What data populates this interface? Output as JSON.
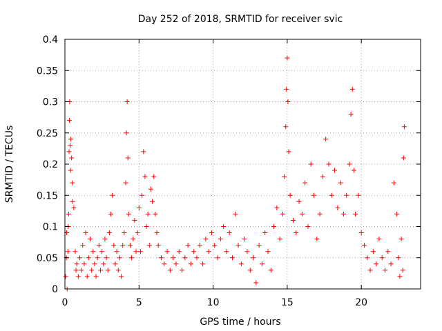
{
  "chart_data": {
    "type": "scatter",
    "title": "Day 252 of 2018, SRMTID for receiver svic",
    "xlabel": "GPS time / hours",
    "ylabel": "SRMTID / TECUs",
    "xlim": [
      0,
      24
    ],
    "ylim": [
      0,
      0.4
    ],
    "xticks": [
      "0",
      "5",
      "10",
      "15",
      "20"
    ],
    "xtick_values": [
      0,
      5,
      10,
      15,
      20
    ],
    "yticks": [
      "0",
      "0.05",
      "0.1",
      "0.15",
      "0.2",
      "0.25",
      "0.3",
      "0.35",
      "0.4"
    ],
    "ytick_values": [
      0,
      0.05,
      0.1,
      0.15,
      0.2,
      0.25,
      0.3,
      0.35,
      0.4
    ],
    "grid": true,
    "marker": "+",
    "colors": {
      "series": "#ff0000",
      "grid": "#a0a0a0",
      "axis": "#000000"
    },
    "series": [
      {
        "points": [
          [
            0.05,
            0.02
          ],
          [
            0.1,
            0.05
          ],
          [
            0.12,
            0.09
          ],
          [
            0.15,
            0.0
          ],
          [
            0.2,
            0.06
          ],
          [
            0.22,
            0.1
          ],
          [
            0.25,
            0.12
          ],
          [
            0.28,
            0.22
          ],
          [
            0.3,
            0.27
          ],
          [
            0.32,
            0.3
          ],
          [
            0.35,
            0.23
          ],
          [
            0.38,
            0.19
          ],
          [
            0.4,
            0.24
          ],
          [
            0.45,
            0.21
          ],
          [
            0.5,
            0.17
          ],
          [
            0.52,
            0.14
          ],
          [
            0.6,
            0.13
          ],
          [
            0.7,
            0.06
          ],
          [
            0.75,
            0.03
          ],
          [
            0.8,
            0.04
          ],
          [
            0.9,
            0.02
          ],
          [
            1.0,
            0.05
          ],
          [
            1.1,
            0.03
          ],
          [
            1.2,
            0.07
          ],
          [
            1.3,
            0.04
          ],
          [
            1.4,
            0.09
          ],
          [
            1.5,
            0.02
          ],
          [
            1.6,
            0.05
          ],
          [
            1.7,
            0.08
          ],
          [
            1.8,
            0.03
          ],
          [
            1.9,
            0.06
          ],
          [
            2.0,
            0.04
          ],
          [
            2.1,
            0.02
          ],
          [
            2.2,
            0.05
          ],
          [
            2.3,
            0.07
          ],
          [
            2.4,
            0.03
          ],
          [
            2.5,
            0.06
          ],
          [
            2.6,
            0.04
          ],
          [
            2.7,
            0.08
          ],
          [
            2.8,
            0.05
          ],
          [
            2.9,
            0.03
          ],
          [
            3.0,
            0.09
          ],
          [
            3.1,
            0.12
          ],
          [
            3.2,
            0.15
          ],
          [
            3.3,
            0.07
          ],
          [
            3.4,
            0.04
          ],
          [
            3.5,
            0.06
          ],
          [
            3.6,
            0.03
          ],
          [
            3.7,
            0.05
          ],
          [
            3.8,
            0.02
          ],
          [
            3.9,
            0.07
          ],
          [
            4.0,
            0.09
          ],
          [
            4.1,
            0.17
          ],
          [
            4.15,
            0.25
          ],
          [
            4.2,
            0.3
          ],
          [
            4.25,
            0.21
          ],
          [
            4.3,
            0.12
          ],
          [
            4.4,
            0.07
          ],
          [
            4.5,
            0.05
          ],
          [
            4.6,
            0.08
          ],
          [
            4.7,
            0.11
          ],
          [
            4.8,
            0.06
          ],
          [
            4.9,
            0.09
          ],
          [
            5.0,
            0.13
          ],
          [
            5.1,
            0.06
          ],
          [
            5.2,
            0.15
          ],
          [
            5.3,
            0.22
          ],
          [
            5.4,
            0.18
          ],
          [
            5.5,
            0.1
          ],
          [
            5.6,
            0.12
          ],
          [
            5.7,
            0.07
          ],
          [
            5.8,
            0.16
          ],
          [
            5.9,
            0.14
          ],
          [
            6.0,
            0.18
          ],
          [
            6.1,
            0.12
          ],
          [
            6.2,
            0.09
          ],
          [
            6.3,
            0.07
          ],
          [
            6.5,
            0.05
          ],
          [
            6.7,
            0.04
          ],
          [
            6.9,
            0.06
          ],
          [
            7.1,
            0.03
          ],
          [
            7.3,
            0.05
          ],
          [
            7.5,
            0.04
          ],
          [
            7.7,
            0.06
          ],
          [
            7.9,
            0.03
          ],
          [
            8.1,
            0.05
          ],
          [
            8.3,
            0.07
          ],
          [
            8.5,
            0.04
          ],
          [
            8.7,
            0.06
          ],
          [
            8.9,
            0.05
          ],
          [
            9.1,
            0.07
          ],
          [
            9.3,
            0.04
          ],
          [
            9.5,
            0.08
          ],
          [
            9.7,
            0.06
          ],
          [
            9.9,
            0.09
          ],
          [
            10.1,
            0.07
          ],
          [
            10.3,
            0.05
          ],
          [
            10.5,
            0.08
          ],
          [
            10.7,
            0.1
          ],
          [
            10.9,
            0.06
          ],
          [
            11.1,
            0.09
          ],
          [
            11.3,
            0.05
          ],
          [
            11.5,
            0.12
          ],
          [
            11.7,
            0.07
          ],
          [
            11.9,
            0.04
          ],
          [
            12.1,
            0.08
          ],
          [
            12.3,
            0.06
          ],
          [
            12.5,
            0.03
          ],
          [
            12.7,
            0.05
          ],
          [
            12.9,
            0.01
          ],
          [
            13.1,
            0.07
          ],
          [
            13.3,
            0.04
          ],
          [
            13.5,
            0.09
          ],
          [
            13.7,
            0.06
          ],
          [
            13.9,
            0.03
          ],
          [
            14.1,
            0.1
          ],
          [
            14.3,
            0.13
          ],
          [
            14.5,
            0.08
          ],
          [
            14.7,
            0.12
          ],
          [
            14.8,
            0.18
          ],
          [
            14.9,
            0.26
          ],
          [
            14.95,
            0.32
          ],
          [
            15.0,
            0.37
          ],
          [
            15.05,
            0.3
          ],
          [
            15.1,
            0.22
          ],
          [
            15.2,
            0.15
          ],
          [
            15.4,
            0.11
          ],
          [
            15.6,
            0.09
          ],
          [
            15.8,
            0.14
          ],
          [
            16.0,
            0.12
          ],
          [
            16.2,
            0.17
          ],
          [
            16.4,
            0.1
          ],
          [
            16.6,
            0.2
          ],
          [
            16.8,
            0.15
          ],
          [
            17.0,
            0.08
          ],
          [
            17.2,
            0.12
          ],
          [
            17.4,
            0.18
          ],
          [
            17.6,
            0.24
          ],
          [
            17.8,
            0.2
          ],
          [
            18.0,
            0.15
          ],
          [
            18.2,
            0.19
          ],
          [
            18.4,
            0.13
          ],
          [
            18.6,
            0.17
          ],
          [
            18.8,
            0.12
          ],
          [
            19.0,
            0.15
          ],
          [
            19.2,
            0.2
          ],
          [
            19.3,
            0.28
          ],
          [
            19.4,
            0.32
          ],
          [
            19.5,
            0.19
          ],
          [
            19.6,
            0.12
          ],
          [
            19.8,
            0.15
          ],
          [
            20.0,
            0.09
          ],
          [
            20.2,
            0.07
          ],
          [
            20.4,
            0.05
          ],
          [
            20.6,
            0.03
          ],
          [
            20.8,
            0.06
          ],
          [
            21.0,
            0.04
          ],
          [
            21.2,
            0.08
          ],
          [
            21.4,
            0.05
          ],
          [
            21.6,
            0.03
          ],
          [
            21.8,
            0.06
          ],
          [
            22.0,
            0.04
          ],
          [
            22.2,
            0.17
          ],
          [
            22.4,
            0.12
          ],
          [
            22.5,
            0.05
          ],
          [
            22.6,
            0.02
          ],
          [
            22.7,
            0.08
          ],
          [
            22.8,
            0.03
          ],
          [
            22.85,
            0.21
          ],
          [
            22.9,
            0.26
          ]
        ]
      }
    ]
  }
}
